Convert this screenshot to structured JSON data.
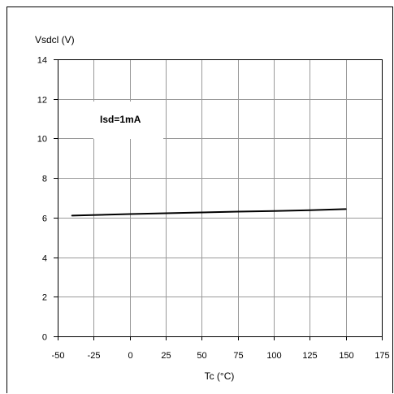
{
  "chart_data": {
    "type": "line",
    "title": "",
    "xlabel": "Tc (°C)",
    "ylabel": "Vsdcl (V)",
    "xlim": [
      -50,
      175
    ],
    "ylim": [
      0,
      14
    ],
    "x_ticks": [
      "-50",
      "-25",
      "0",
      "25",
      "50",
      "75",
      "100",
      "125",
      "150",
      "175"
    ],
    "y_ticks": [
      "0",
      "2",
      "4",
      "6",
      "8",
      "10",
      "12",
      "14"
    ],
    "grid": true,
    "annotation": "Isd=1mA",
    "series": [
      {
        "x": [
          -40,
          0,
          25,
          50,
          75,
          100,
          125,
          150
        ],
        "y": [
          6.1,
          6.18,
          6.22,
          6.26,
          6.3,
          6.33,
          6.37,
          6.43
        ]
      }
    ],
    "colors": {
      "line": "#000000",
      "grid": "#999999",
      "axis": "#000000"
    }
  }
}
